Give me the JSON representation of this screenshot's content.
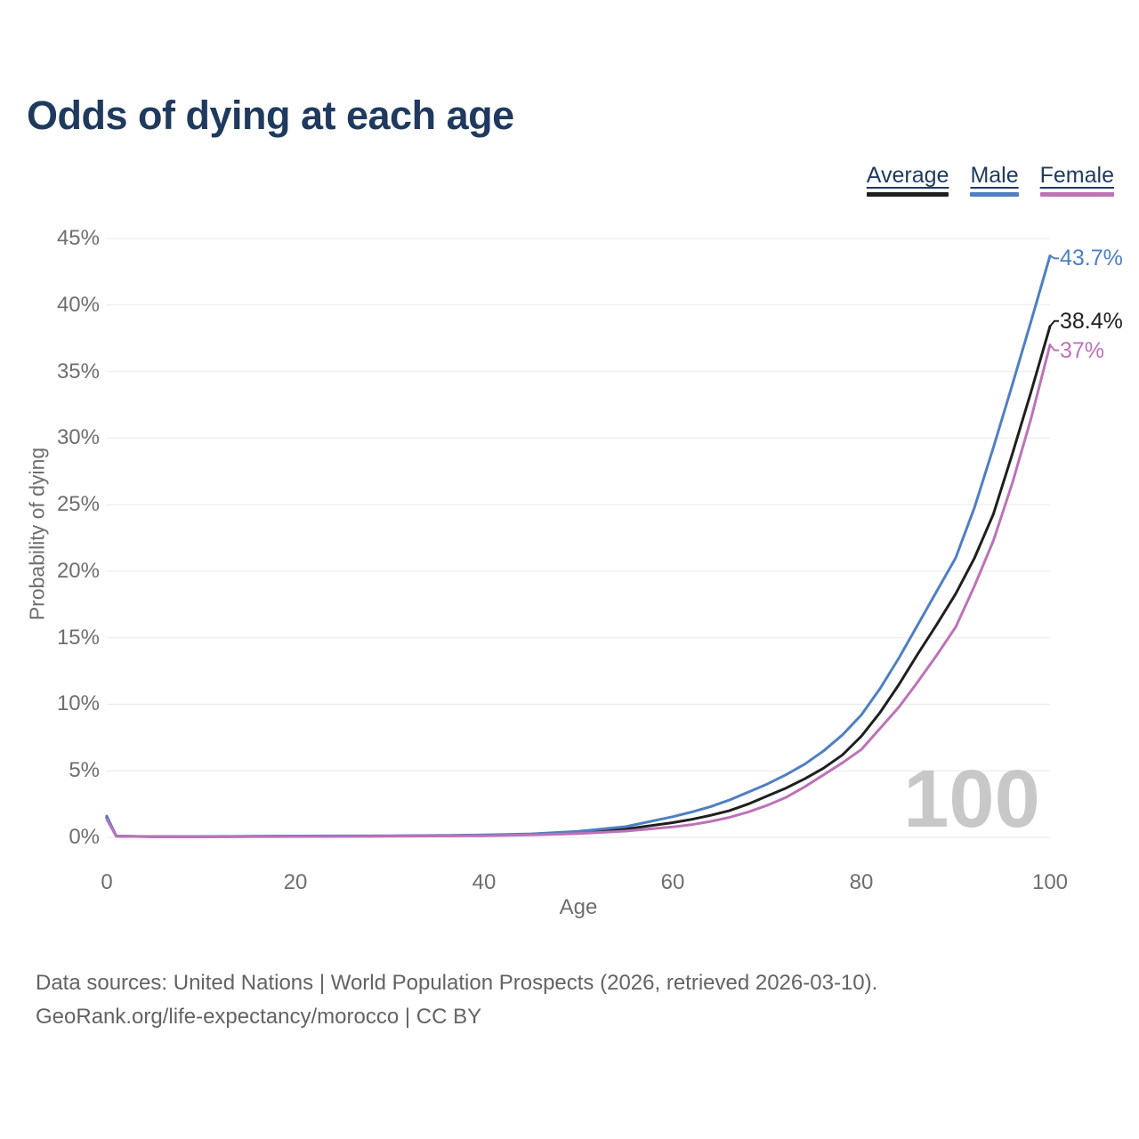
{
  "watermark": "100",
  "footer": {
    "line1": "Data sources: United Nations | World Population Prospects (2026, retrieved 2026-03-10).",
    "line2": "GeoRank.org/life-expectancy/morocco | CC BY"
  },
  "chart_data": {
    "type": "line",
    "title": "Odds of dying at each age",
    "xlabel": "Age",
    "ylabel": "Probability of dying",
    "xlim": [
      0,
      100
    ],
    "ylim": [
      0,
      45
    ],
    "grid": "horizontal",
    "legend_position": "top-right",
    "xticks": [
      [
        0,
        "0"
      ],
      [
        20,
        "20"
      ],
      [
        40,
        "40"
      ],
      [
        60,
        "60"
      ],
      [
        80,
        "80"
      ],
      [
        100,
        "100"
      ]
    ],
    "yticks": [
      [
        0,
        "0%"
      ],
      [
        5,
        "5%"
      ],
      [
        10,
        "10%"
      ],
      [
        15,
        "15%"
      ],
      [
        20,
        "20%"
      ],
      [
        25,
        "25%"
      ],
      [
        30,
        "30%"
      ],
      [
        35,
        "35%"
      ],
      [
        40,
        "40%"
      ],
      [
        45,
        "45%"
      ]
    ],
    "x": [
      0,
      1,
      5,
      10,
      15,
      20,
      25,
      30,
      35,
      40,
      45,
      50,
      55,
      60,
      62,
      64,
      66,
      68,
      70,
      72,
      74,
      76,
      78,
      80,
      82,
      84,
      86,
      88,
      90,
      92,
      94,
      96,
      98,
      100
    ],
    "series": [
      {
        "name": "Average",
        "color": "#1f1f1f",
        "end_label": "38.4%",
        "values": [
          1.5,
          0.09,
          0.05,
          0.05,
          0.07,
          0.08,
          0.09,
          0.1,
          0.12,
          0.15,
          0.22,
          0.36,
          0.62,
          1.1,
          1.35,
          1.65,
          2.0,
          2.5,
          3.1,
          3.7,
          4.4,
          5.2,
          6.2,
          7.6,
          9.4,
          11.5,
          13.8,
          16.0,
          18.3,
          21.0,
          24.3,
          28.8,
          33.5,
          38.4
        ]
      },
      {
        "name": "Male",
        "color": "#4e7fc4",
        "end_label": "43.7%",
        "values": [
          1.6,
          0.1,
          0.06,
          0.06,
          0.08,
          0.1,
          0.11,
          0.12,
          0.14,
          0.18,
          0.26,
          0.45,
          0.8,
          1.55,
          1.9,
          2.3,
          2.8,
          3.4,
          4.0,
          4.7,
          5.5,
          6.5,
          7.7,
          9.2,
          11.2,
          13.5,
          16.0,
          18.5,
          21.0,
          24.8,
          29.3,
          34.0,
          38.8,
          43.7
        ]
      },
      {
        "name": "Female",
        "color": "#bd72b7",
        "end_label": "37%",
        "values": [
          1.35,
          0.08,
          0.05,
          0.04,
          0.05,
          0.06,
          0.07,
          0.08,
          0.1,
          0.12,
          0.18,
          0.28,
          0.47,
          0.78,
          0.95,
          1.2,
          1.5,
          1.9,
          2.4,
          3.0,
          3.8,
          4.7,
          5.6,
          6.6,
          8.2,
          9.8,
          11.7,
          13.7,
          15.8,
          18.9,
          22.3,
          26.6,
          31.5,
          37.0
        ]
      }
    ]
  }
}
